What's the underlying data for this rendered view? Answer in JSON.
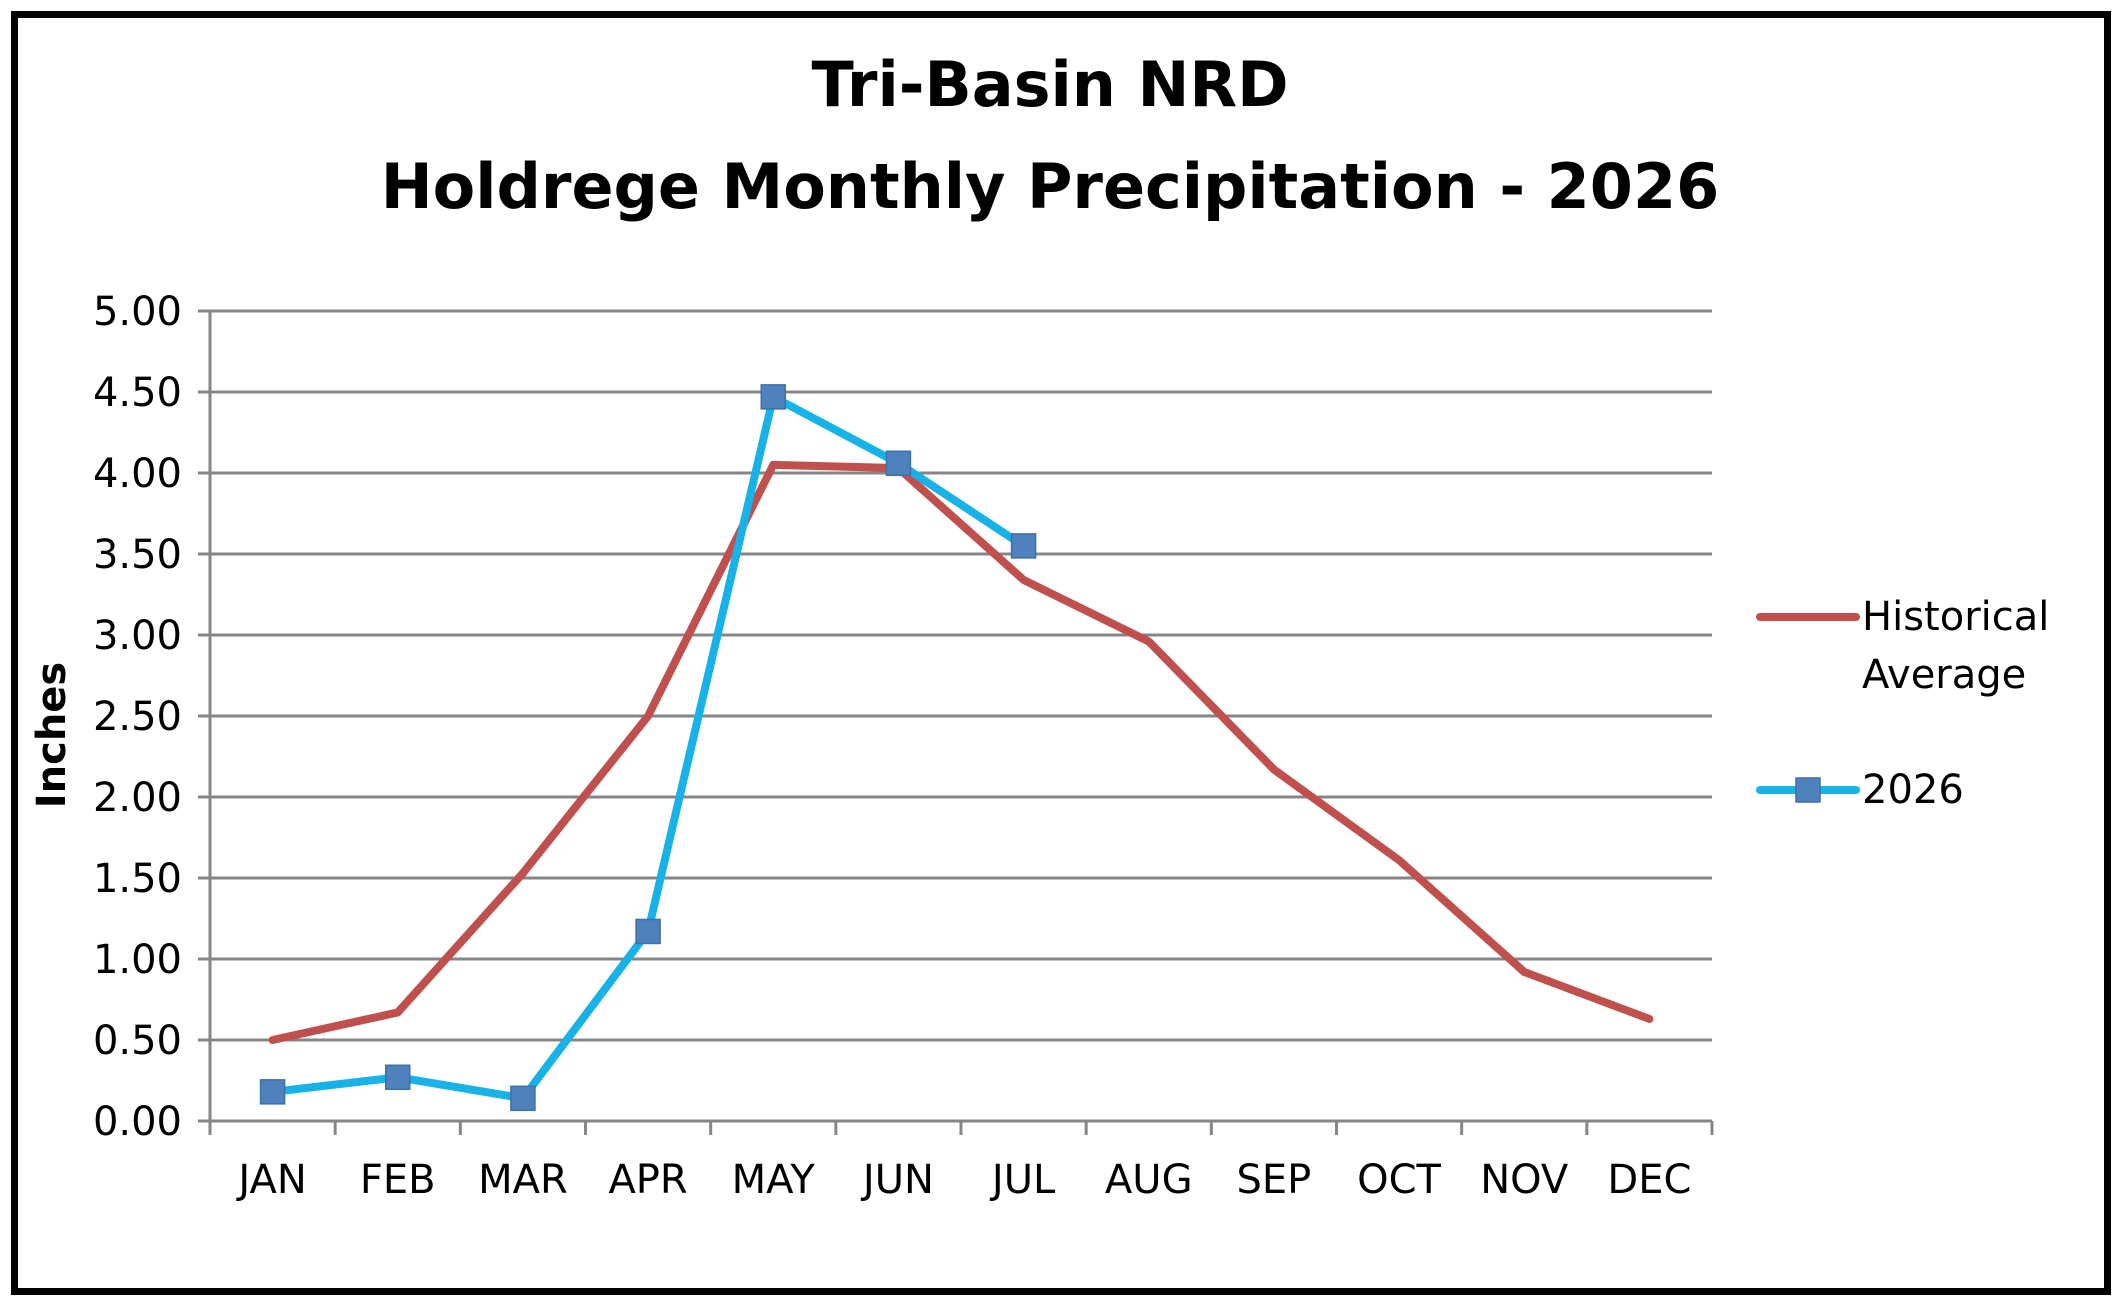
{
  "chart_data": {
    "type": "line",
    "title": "Tri-Basin NRD",
    "subtitle": "Holdrege Monthly Precipitation - 2026",
    "xlabel": "",
    "ylabel": "Inches",
    "ylim": [
      0,
      5
    ],
    "yticks": [
      "0.00",
      "0.50",
      "1.00",
      "1.50",
      "2.00",
      "2.50",
      "3.00",
      "3.50",
      "4.00",
      "4.50",
      "5.00"
    ],
    "categories": [
      "JAN",
      "FEB",
      "MAR",
      "APR",
      "MAY",
      "JUN",
      "JUL",
      "AUG",
      "SEP",
      "OCT",
      "NOV",
      "DEC"
    ],
    "grid": true,
    "legend_position": "right",
    "series": [
      {
        "name": "Historical\nAverage",
        "name_lines": [
          "Historical",
          "Average"
        ],
        "color": "#C0504D",
        "marker": "none",
        "values": [
          0.5,
          0.67,
          1.53,
          2.5,
          4.05,
          4.03,
          3.34,
          2.96,
          2.17,
          1.61,
          0.92,
          0.63
        ]
      },
      {
        "name": "2026",
        "name_lines": [
          "2026"
        ],
        "color": "#17B2E8",
        "marker": "square",
        "marker_color": "#4F81BD",
        "values": [
          0.18,
          0.27,
          0.14,
          1.17,
          4.47,
          4.06,
          3.55,
          null,
          null,
          null,
          null,
          null
        ]
      }
    ]
  }
}
